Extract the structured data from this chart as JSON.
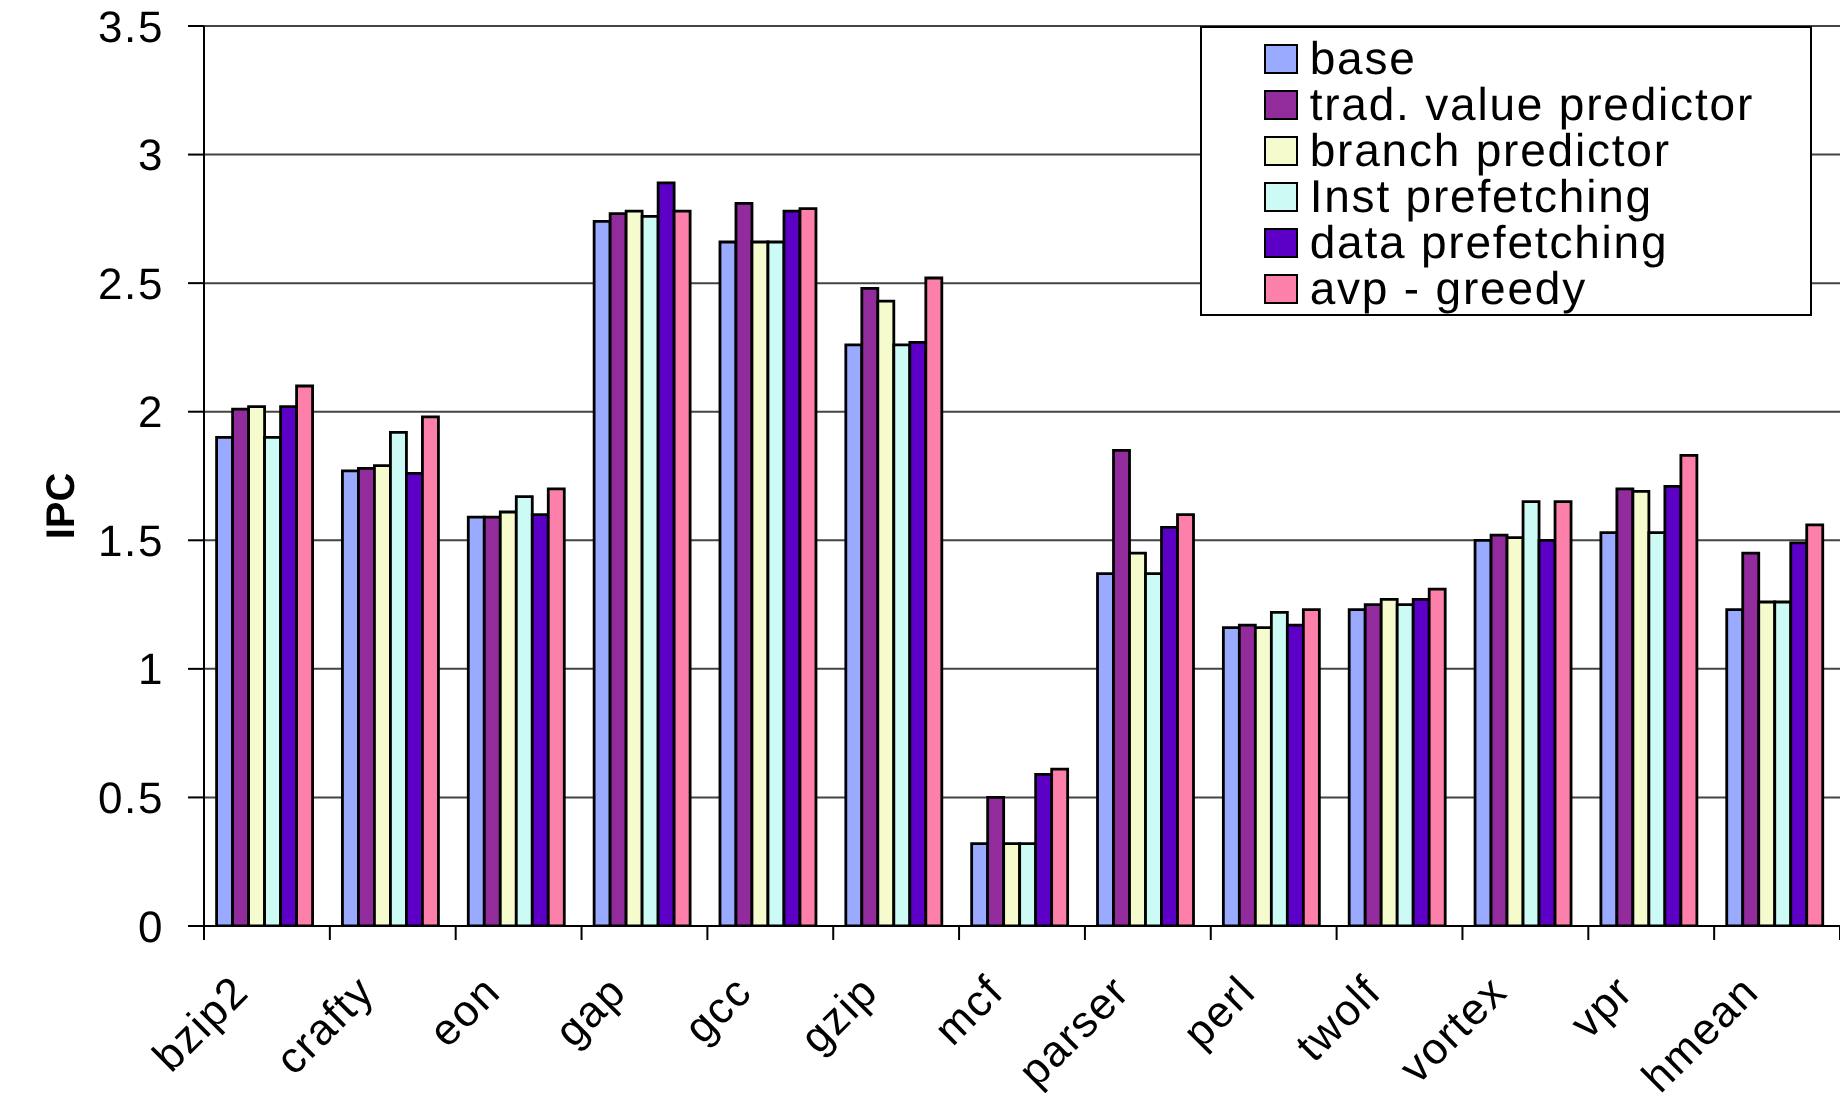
{
  "chart_data": {
    "type": "bar",
    "ylabel": "IPC",
    "categories": [
      "bzip2",
      "crafty",
      "eon",
      "gap",
      "gcc",
      "gzip",
      "mcf",
      "parser",
      "perl",
      "twolf",
      "vortex",
      "vpr",
      "hmean"
    ],
    "series": [
      {
        "name": "base",
        "color": "#99aaff",
        "values": [
          1.9,
          1.77,
          1.59,
          2.74,
          2.66,
          2.26,
          0.32,
          1.37,
          1.16,
          1.23,
          1.5,
          1.53,
          1.23
        ]
      },
      {
        "name": "trad. value predictor",
        "color": "#922b9c",
        "values": [
          2.01,
          1.78,
          1.59,
          2.77,
          2.81,
          2.48,
          0.5,
          1.85,
          1.17,
          1.25,
          1.52,
          1.7,
          1.45
        ]
      },
      {
        "name": "branch predictor",
        "color": "#f5fbcc",
        "values": [
          2.02,
          1.79,
          1.61,
          2.78,
          2.66,
          2.43,
          0.32,
          1.45,
          1.16,
          1.27,
          1.51,
          1.69,
          1.26
        ]
      },
      {
        "name": "Inst prefetching",
        "color": "#ccfaf5",
        "values": [
          1.9,
          1.92,
          1.67,
          2.76,
          2.66,
          2.26,
          0.32,
          1.37,
          1.22,
          1.25,
          1.65,
          1.53,
          1.26
        ]
      },
      {
        "name": "data prefetching",
        "color": "#5c00c8",
        "values": [
          2.02,
          1.76,
          1.6,
          2.89,
          2.78,
          2.27,
          0.59,
          1.55,
          1.17,
          1.27,
          1.5,
          1.71,
          1.49
        ]
      },
      {
        "name": "avp - greedy",
        "color": "#fd80ab",
        "values": [
          2.1,
          1.98,
          1.7,
          2.78,
          2.79,
          2.52,
          0.61,
          1.6,
          1.23,
          1.31,
          1.65,
          1.83,
          1.56
        ]
      }
    ],
    "ylim": [
      0,
      3.5
    ],
    "yticks": [
      0,
      0.5,
      1,
      1.5,
      2,
      2.5,
      3,
      3.5
    ],
    "grid": "y",
    "legend": "top right"
  }
}
